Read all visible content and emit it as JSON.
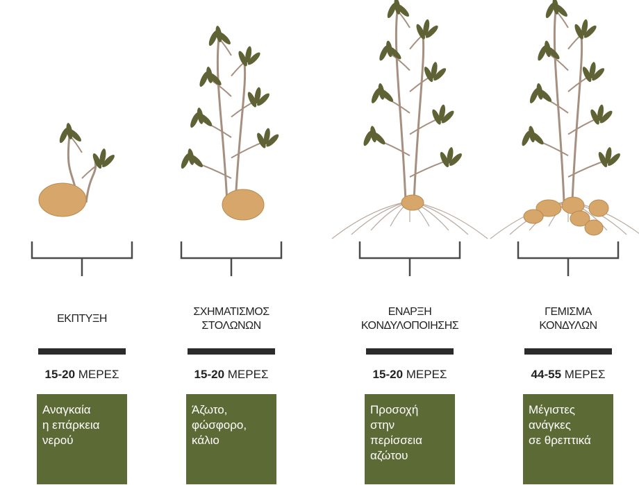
{
  "stages": [
    {
      "title": [
        "ΕΚΠΤΥΞΗ"
      ],
      "days": "15-20",
      "unit": "ΜΕΡΕΣ",
      "note": [
        "Αναγκαία",
        "η επάρκεια",
        "νερού"
      ]
    },
    {
      "title": [
        "ΣΧΗΜΑΤΙΣΜΟΣ",
        "ΣΤΟΛΩΝΩΝ"
      ],
      "days": "15-20",
      "unit": "ΜΕΡΕΣ",
      "note": [
        "Άζωτο,",
        "φώσφορο,",
        "κάλιο"
      ]
    },
    {
      "title": [
        "ΕΝΑΡΞΗ",
        "ΚΟΝΔΥΛΟΠΟΙΗΣΗΣ"
      ],
      "days": "15-20",
      "unit": "ΜΕΡΕΣ",
      "note": [
        "Προσοχή",
        "στην περίσσεια",
        "αζώτου"
      ]
    },
    {
      "title": [
        "ΓΕΜΙΣΜΑ",
        "ΚΟΝΔΥΛΩΝ"
      ],
      "days": "44-55",
      "unit": "ΜΕΡΕΣ",
      "note": [
        "Μέγιστες",
        "ανάγκες",
        "σε θρεπτικά"
      ]
    }
  ]
}
